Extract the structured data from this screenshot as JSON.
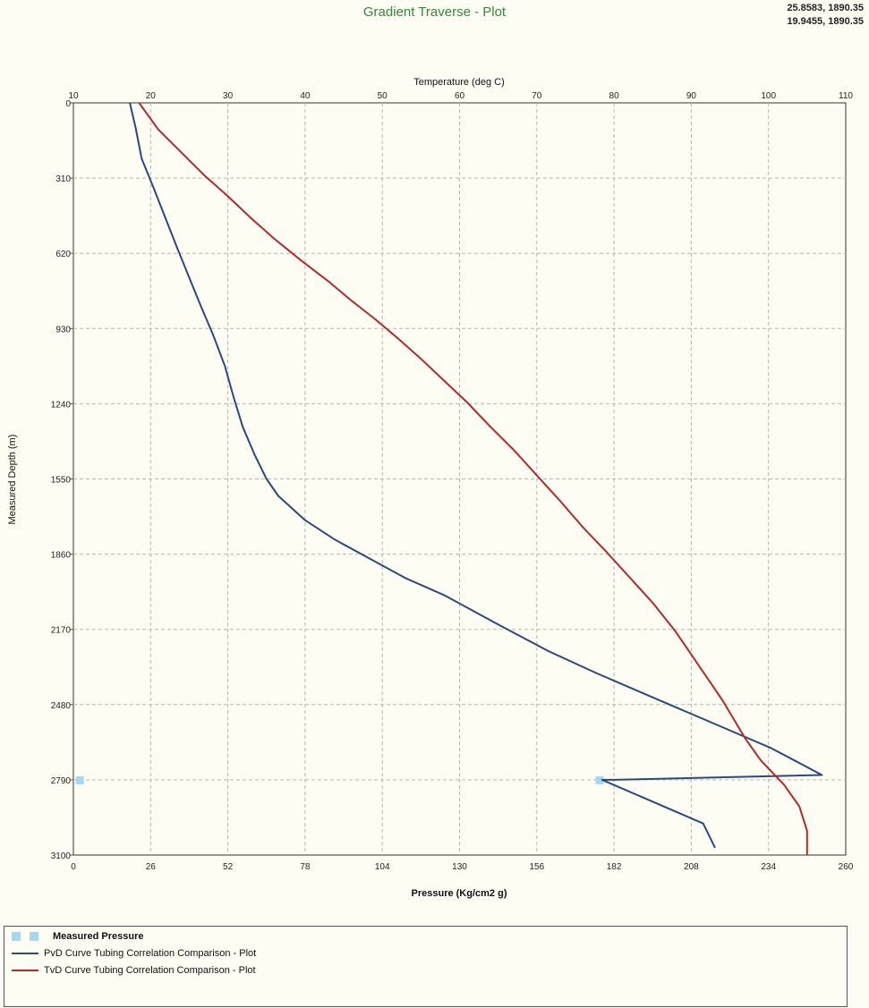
{
  "title": "Gradient Traverse - Plot",
  "cursor_readouts": [
    "25.8583, 1890.35",
    "19.9455, 1890.35"
  ],
  "chart_data": {
    "type": "line",
    "y_axis": {
      "label": "Measured Depth  (m)",
      "range": [
        0,
        3100
      ],
      "inverted": true,
      "ticks": [
        "0",
        "310",
        "620",
        "930",
        "1240",
        "1550",
        "1860",
        "2170",
        "2480",
        "2790",
        "3100"
      ]
    },
    "x_axis_bottom": {
      "label": "Pressure  (Kg/cm2 g)",
      "range": [
        0,
        260
      ],
      "ticks": [
        "0",
        "26",
        "52",
        "78",
        "104",
        "130",
        "156",
        "182",
        "208",
        "234",
        "260"
      ]
    },
    "x_axis_top": {
      "label": "Temperature  (deg C)",
      "range": [
        10,
        110
      ],
      "ticks": [
        "10",
        "20",
        "30",
        "40",
        "50",
        "60",
        "70",
        "80",
        "90",
        "100",
        "110"
      ]
    },
    "grid": true,
    "series": [
      {
        "name": "Measured Pressure",
        "axis": "pressure",
        "style": "square",
        "color": "#a8d8f0",
        "points": [
          [
            2,
            2790
          ],
          [
            177,
            2790
          ]
        ]
      },
      {
        "name": "PvD Curve Tubing Correlation Comparison - Plot",
        "axis": "pressure",
        "style": "line",
        "color": "#2b4a7c",
        "points": [
          [
            19,
            0
          ],
          [
            21,
            105
          ],
          [
            23,
            230
          ],
          [
            27,
            350
          ],
          [
            31,
            475
          ],
          [
            35,
            600
          ],
          [
            39,
            720
          ],
          [
            43,
            840
          ],
          [
            47,
            955
          ],
          [
            51,
            1085
          ],
          [
            54,
            1215
          ],
          [
            57,
            1335
          ],
          [
            61,
            1450
          ],
          [
            65,
            1550
          ],
          [
            69,
            1620
          ],
          [
            78,
            1720
          ],
          [
            88,
            1800
          ],
          [
            100,
            1880
          ],
          [
            112,
            1960
          ],
          [
            125,
            2030
          ],
          [
            143,
            2150
          ],
          [
            160,
            2260
          ],
          [
            176,
            2350
          ],
          [
            195,
            2450
          ],
          [
            216,
            2560
          ],
          [
            235,
            2660
          ],
          [
            252,
            2770
          ],
          [
            182,
            2790
          ],
          [
            178,
            2790
          ],
          [
            195,
            2880
          ],
          [
            212,
            2970
          ],
          [
            216,
            3070
          ]
        ]
      },
      {
        "name": "TvD Curve Tubing Correlation Comparison - Plot",
        "axis": "temperature",
        "style": "line",
        "color": "#b22a2a",
        "points": [
          [
            18.5,
            0
          ],
          [
            21,
            110
          ],
          [
            24,
            205
          ],
          [
            27,
            300
          ],
          [
            30,
            385
          ],
          [
            33,
            475
          ],
          [
            36,
            560
          ],
          [
            39.5,
            650
          ],
          [
            43,
            735
          ],
          [
            46,
            815
          ],
          [
            49,
            890
          ],
          [
            52,
            970
          ],
          [
            55,
            1055
          ],
          [
            58,
            1145
          ],
          [
            61,
            1235
          ],
          [
            64,
            1335
          ],
          [
            67,
            1430
          ],
          [
            70,
            1535
          ],
          [
            73,
            1640
          ],
          [
            76,
            1750
          ],
          [
            79,
            1850
          ],
          [
            82,
            1955
          ],
          [
            85,
            2060
          ],
          [
            88,
            2180
          ],
          [
            91,
            2320
          ],
          [
            94,
            2460
          ],
          [
            97,
            2620
          ],
          [
            99,
            2710
          ],
          [
            102,
            2810
          ],
          [
            104,
            2900
          ],
          [
            105,
            3000
          ],
          [
            105,
            3100
          ]
        ]
      }
    ],
    "legend": "bottom"
  }
}
